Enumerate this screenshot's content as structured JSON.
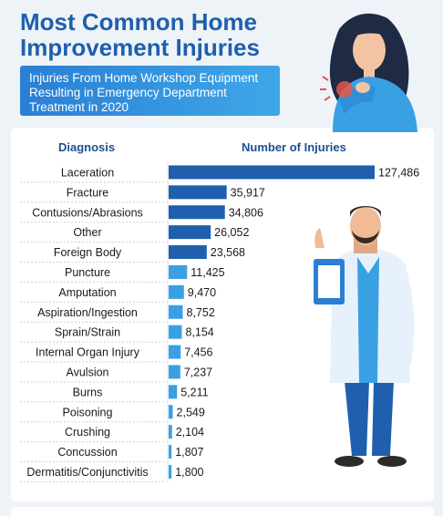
{
  "header": {
    "title_line1": "Most Common Home",
    "title_line2": "Improvement Injuries",
    "subtitle_line1": "Injuries From Home Workshop Equipment",
    "subtitle_line2": "Resulting in Emergency Department",
    "subtitle_line3": "Treatment in 2020"
  },
  "colors": {
    "title": "#1f5fad",
    "bar_dark": "#1f5fad",
    "bar_light": "#3aa0e4",
    "header_text": "#1f4f91"
  },
  "chart_data": {
    "type": "bar",
    "orientation": "horizontal",
    "category_header": "Diagnosis",
    "value_header": "Number of Injuries",
    "categories": [
      "Laceration",
      "Fracture",
      "Contusions/Abrasions",
      "Other",
      "Foreign Body",
      "Puncture",
      "Amputation",
      "Aspiration/Ingestion",
      "Sprain/Strain",
      "Internal Organ Injury",
      "Avulsion",
      "Burns",
      "Poisoning",
      "Crushing",
      "Concussion",
      "Dermatitis/Conjunctivitis"
    ],
    "values": [
      127486,
      35917,
      34806,
      26052,
      23568,
      11425,
      9470,
      8752,
      8154,
      7456,
      7237,
      5211,
      2549,
      2104,
      1807,
      1800
    ],
    "value_labels": [
      "127,486",
      "35,917",
      "34,806",
      "26,052",
      "23,568",
      "11,425",
      "9,470",
      "8,752",
      "8,154",
      "7,456",
      "7,237",
      "5,211",
      "2,549",
      "2,104",
      "1,807",
      "1,800"
    ],
    "xlim": [
      0,
      127486
    ],
    "grid": false,
    "legend": "none"
  },
  "illustrations": {
    "top_right": "woman-holding-injured-elbow-icon",
    "right": "doctor-with-clipboard-icon"
  }
}
